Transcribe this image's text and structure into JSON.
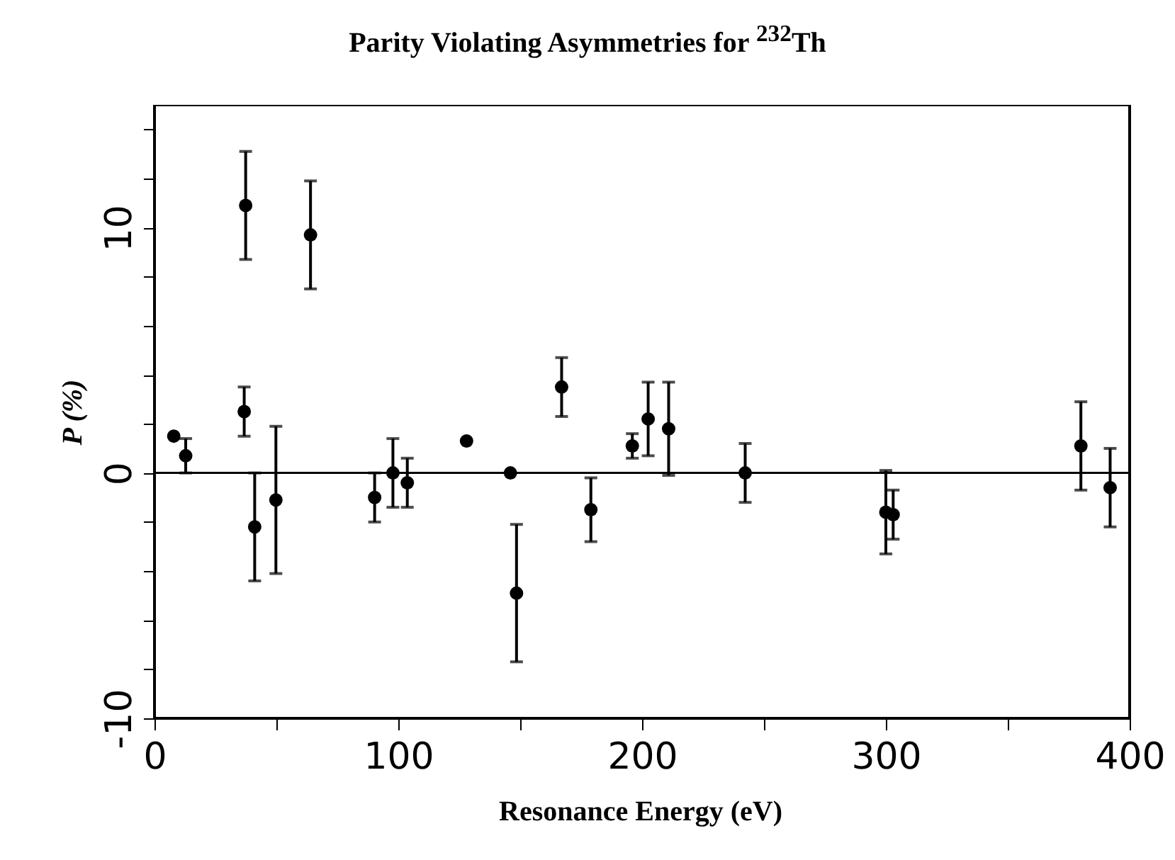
{
  "chart_data": {
    "type": "scatter",
    "title": "Parity Violating Asymmetries for $^{232}$Th",
    "xlabel": "Resonance Energy (eV)",
    "ylabel": "P (%)",
    "xlim": [
      0,
      400
    ],
    "ylim": [
      -10,
      15
    ],
    "xticks": [
      0,
      {
        "value": 50,
        "label": null
      },
      100,
      {
        "value": 150,
        "label": null
      },
      200,
      {
        "value": 250,
        "label": null
      },
      300,
      {
        "value": 350,
        "label": null
      },
      400
    ],
    "yticks": [
      -10,
      {
        "value": -8,
        "label": null
      },
      {
        "value": -6,
        "label": null
      },
      {
        "value": -4,
        "label": null
      },
      {
        "value": -2,
        "label": null
      },
      0,
      {
        "value": 2,
        "label": null
      },
      {
        "value": 4,
        "label": null
      },
      {
        "value": 6,
        "label": null
      },
      {
        "value": 8,
        "label": null
      },
      10,
      {
        "value": 12,
        "label": null
      },
      {
        "value": 14,
        "label": null
      }
    ],
    "marker": "circle",
    "ref_lines": [
      {
        "axis": "y",
        "value": 0
      }
    ],
    "series": [
      {
        "color": "#000000",
        "x": [
          7.9,
          12.8,
          37.4,
          36.8,
          41.1,
          49.8,
          64,
          90.3,
          97.8,
          103.7,
          128,
          146,
          148.5,
          167,
          179,
          196,
          202.5,
          210.9,
          242.3,
          300,
          303,
          380,
          392
        ],
        "values": [
          1.5,
          0.7,
          10.9,
          2.5,
          -2.2,
          -1.1,
          9.7,
          -1.0,
          0,
          -0.4,
          1.3,
          0,
          -4.9,
          3.5,
          -1.5,
          1.1,
          2.2,
          1.8,
          0,
          -1.6,
          -1.7,
          1.1,
          -0.6
        ],
        "errors": [
          null,
          0.7,
          2.2,
          1.0,
          2.2,
          3.0,
          2.2,
          1.0,
          1.4,
          1.0,
          null,
          null,
          2.8,
          1.2,
          1.3,
          0.5,
          1.5,
          1.9,
          1.2,
          1.7,
          1.0,
          1.8,
          1.6
        ]
      }
    ]
  }
}
